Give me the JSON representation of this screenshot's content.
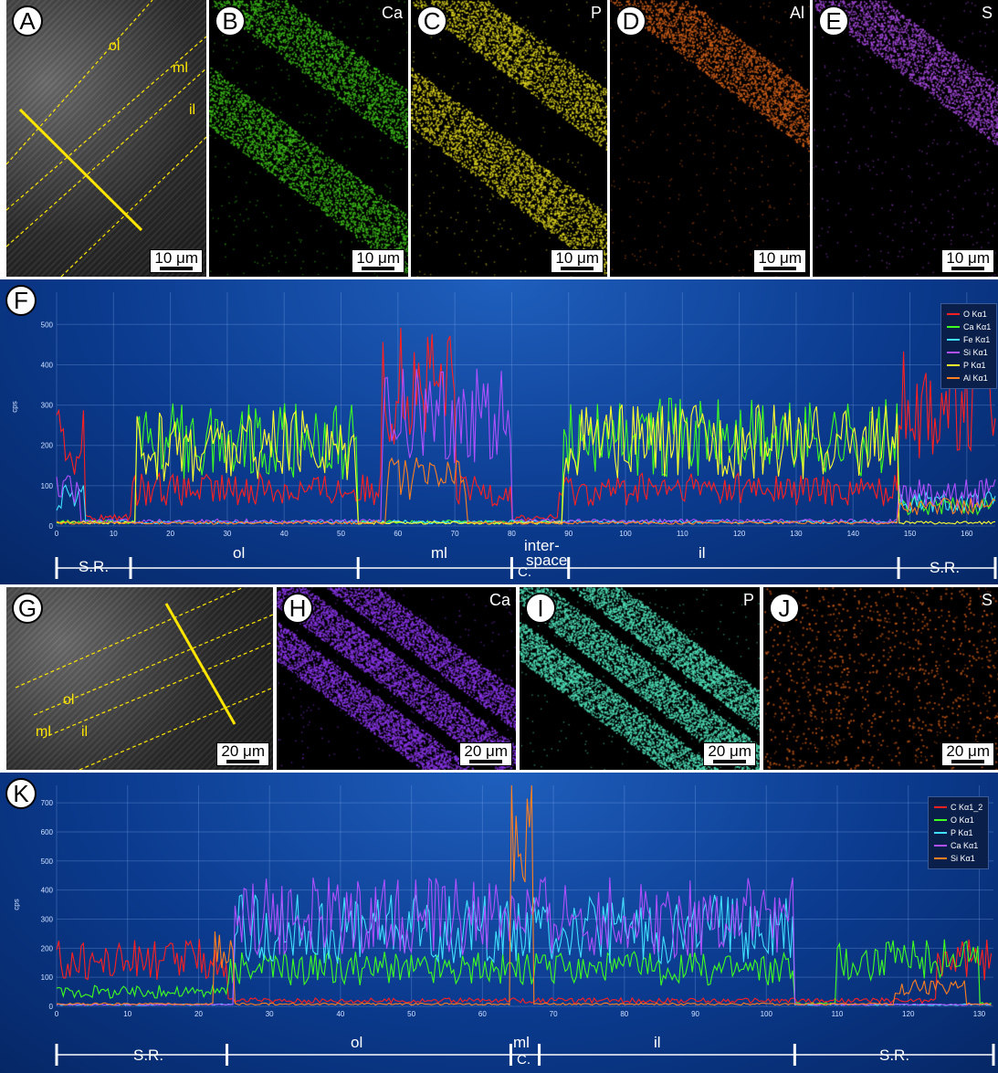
{
  "top_row": {
    "panels": [
      {
        "letter": "A",
        "element": "",
        "scale": "10 μm",
        "layer_labels": [
          "ol",
          "ml",
          "il"
        ]
      },
      {
        "letter": "B",
        "element": "Ca",
        "scale": "10 μm",
        "color": "#3dbf1a"
      },
      {
        "letter": "C",
        "element": "P",
        "scale": "10 μm",
        "color": "#d9d01f"
      },
      {
        "letter": "D",
        "element": "Al",
        "scale": "10 μm",
        "color": "#d4601a"
      },
      {
        "letter": "E",
        "element": "S",
        "scale": "10 μm",
        "color": "#a84ae0"
      }
    ]
  },
  "chart_F": {
    "letter": "F",
    "ylabel": "cps",
    "y_ticks": [
      "0",
      "100",
      "200",
      "300",
      "400",
      "500"
    ],
    "x_ticks": [
      "0",
      "10",
      "20",
      "30",
      "40",
      "50",
      "60",
      "70",
      "80",
      "90",
      "100",
      "110",
      "120",
      "130",
      "140",
      "150",
      "160"
    ],
    "legend": [
      {
        "name": "O Kα1",
        "color": "#ff2020"
      },
      {
        "name": "Ca Kα1",
        "color": "#40ff20"
      },
      {
        "name": "Fe Kα1",
        "color": "#40e0ff"
      },
      {
        "name": "Si Kα1",
        "color": "#b050ff"
      },
      {
        "name": "P Kα1",
        "color": "#ffff30"
      },
      {
        "name": "Al Kα1",
        "color": "#ff8020"
      }
    ],
    "segments": {
      "sr_left": "S.R.",
      "ol": "ol",
      "ml": "ml",
      "interspace_1": "inter-",
      "interspace_2": "space",
      "c": "C.",
      "il": "il",
      "sr_right": "S.R."
    }
  },
  "middle_row": {
    "panels": [
      {
        "letter": "G",
        "element": "",
        "scale": "20 μm",
        "layer_labels": [
          "ol",
          "ml",
          "il"
        ]
      },
      {
        "letter": "H",
        "element": "Ca",
        "scale": "20 μm",
        "color": "#8a35e8"
      },
      {
        "letter": "I",
        "element": "P",
        "scale": "20 μm",
        "color": "#4fe0b8"
      },
      {
        "letter": "J",
        "element": "S",
        "scale": "20 μm",
        "color": "#e0641a"
      }
    ]
  },
  "chart_K": {
    "letter": "K",
    "ylabel": "cps",
    "y_ticks": [
      "0",
      "100",
      "200",
      "300",
      "400",
      "500",
      "600",
      "700"
    ],
    "x_ticks": [
      "0",
      "10",
      "20",
      "30",
      "40",
      "50",
      "60",
      "70",
      "80",
      "90",
      "100",
      "110",
      "120",
      "130"
    ],
    "legend": [
      {
        "name": "C Kα1_2",
        "color": "#ff2020"
      },
      {
        "name": "O Kα1",
        "color": "#40ff20"
      },
      {
        "name": "P Kα1",
        "color": "#40e0ff"
      },
      {
        "name": "Ca Kα1",
        "color": "#b050ff"
      },
      {
        "name": "Si Kα1",
        "color": "#ff8020"
      }
    ],
    "segments": {
      "sr_left": "S.R.",
      "ol": "ol",
      "ml": "ml",
      "c": "C.",
      "il": "il",
      "sr_right": "S.R."
    }
  }
}
